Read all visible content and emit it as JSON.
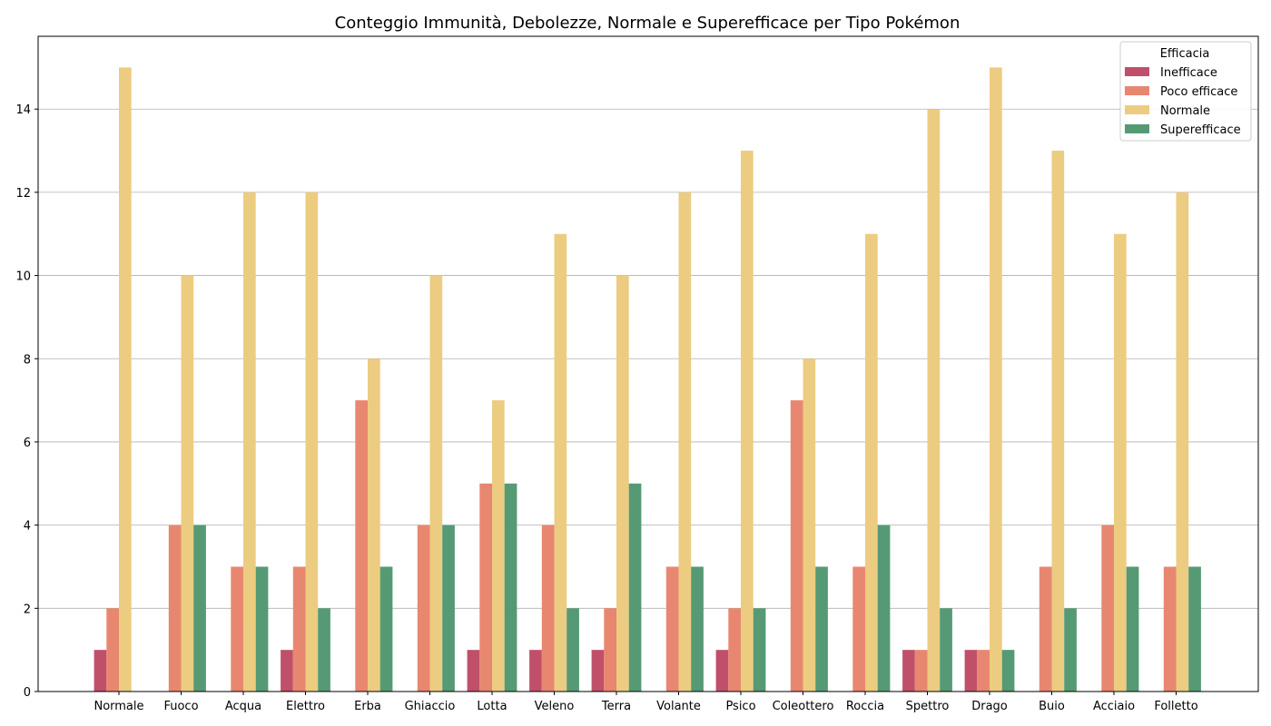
{
  "chart_data": {
    "type": "bar",
    "title": "Conteggio Immunità, Debolezze, Normale e Superefficace per Tipo Pokémon",
    "xlabel": "",
    "ylabel": "",
    "ylim": [
      0,
      15.75
    ],
    "yticks": [
      0,
      2,
      4,
      6,
      8,
      10,
      12,
      14
    ],
    "grid": "y",
    "legend": {
      "title": "Efficacia",
      "placement": "top-right"
    },
    "categories": [
      "Normale",
      "Fuoco",
      "Acqua",
      "Elettro",
      "Erba",
      "Ghiaccio",
      "Lotta",
      "Veleno",
      "Terra",
      "Volante",
      "Psico",
      "Coleottero",
      "Roccia",
      "Spettro",
      "Drago",
      "Buio",
      "Acciaio",
      "Folletto"
    ],
    "series": [
      {
        "name": "Inefficace",
        "color": "#c0506a",
        "values": [
          1,
          0,
          0,
          1,
          0,
          0,
          1,
          1,
          1,
          0,
          1,
          0,
          0,
          1,
          1,
          0,
          0,
          0
        ]
      },
      {
        "name": "Poco efficace",
        "color": "#e88770",
        "values": [
          2,
          4,
          3,
          3,
          7,
          4,
          5,
          4,
          2,
          3,
          2,
          7,
          3,
          1,
          1,
          3,
          4,
          3
        ]
      },
      {
        "name": "Normale",
        "color": "#eccc80",
        "values": [
          15,
          10,
          12,
          12,
          8,
          10,
          7,
          11,
          10,
          12,
          13,
          8,
          11,
          14,
          15,
          13,
          11,
          12
        ]
      },
      {
        "name": "Superefficace",
        "color": "#559a74",
        "values": [
          0,
          4,
          3,
          2,
          3,
          4,
          5,
          2,
          5,
          3,
          2,
          3,
          4,
          2,
          1,
          2,
          3,
          3
        ]
      }
    ]
  }
}
